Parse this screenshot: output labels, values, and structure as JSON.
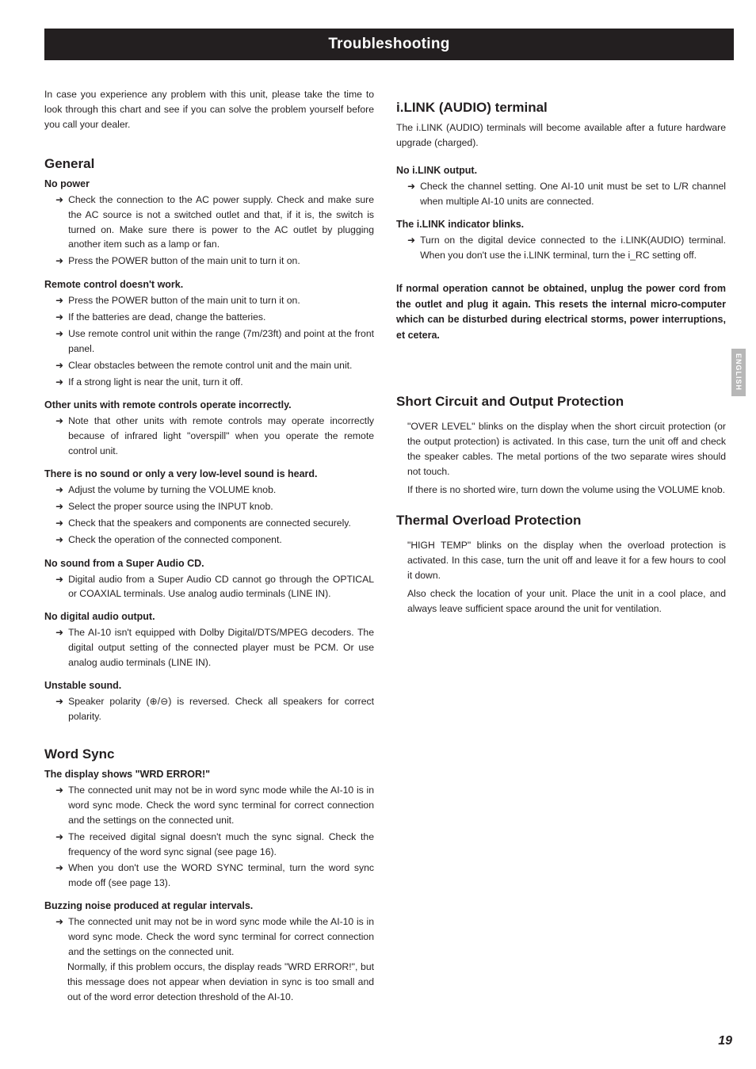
{
  "header": {
    "title": "Troubleshooting"
  },
  "sideTab": "ENGLISH",
  "pageNumber": "19",
  "intro": "In case you experience any problem with this unit, please take the time to look through this chart and see if you can solve the problem yourself before you call your dealer.",
  "sections": {
    "general": {
      "title": "General",
      "items": [
        {
          "sym": "No power",
          "pts": [
            "Check the connection to the AC power supply. Check and make sure the AC source is not a switched outlet and that, if it is, the switch is turned on. Make sure there is power to the AC outlet by plugging another item such as a lamp or fan.",
            "Press the POWER button of the main unit to turn it on."
          ]
        },
        {
          "sym": "Remote control doesn't work.",
          "pts": [
            "Press the POWER button of the main unit to turn it on.",
            "If the batteries are dead, change the batteries.",
            "Use remote control unit within the range (7m/23ft) and point at the front panel.",
            "Clear obstacles between the remote control unit and the main unit.",
            "If a strong light is near the unit, turn it off."
          ]
        },
        {
          "sym": "Other units with remote controls operate incorrectly.",
          "pts": [
            "Note that other units with remote controls may operate incorrectly because of infrared light \"overspill\" when you operate the remote control unit."
          ]
        },
        {
          "sym": "There is no sound or only a very low-level sound is heard.",
          "pts": [
            "Adjust the volume by turning the VOLUME knob.",
            "Select the proper source using the INPUT knob.",
            "Check that the speakers and components are connected securely.",
            "Check the operation of the connected component."
          ]
        },
        {
          "sym": "No sound from a Super Audio CD.",
          "pts": [
            "Digital audio from a Super Audio CD cannot go through the OPTICAL or COAXIAL terminals. Use analog audio terminals (LINE IN)."
          ]
        },
        {
          "sym": "No digital audio output.",
          "pts": [
            "The AI-10 isn't equipped with Dolby Digital/DTS/MPEG decoders. The digital output setting of the connected player must be PCM. Or use analog audio terminals (LINE IN)."
          ]
        },
        {
          "sym": "Unstable sound.",
          "pts": [
            "Speaker polarity (⊕/⊖) is reversed. Check all speakers for correct polarity."
          ]
        }
      ]
    },
    "wordsync": {
      "title": "Word Sync",
      "items": [
        {
          "sym": "The display shows \"WRD ERROR!\"",
          "pts": [
            "The connected unit may not be in word sync mode while the AI-10 is in word sync mode. Check the word sync terminal for correct connection and the settings on the connected unit.",
            "The received digital signal doesn't much the sync signal. Check the frequency of the word sync signal (see page 16).",
            "When you don't use the WORD SYNC terminal, turn the word sync mode off (see page 13)."
          ]
        },
        {
          "sym": "Buzzing noise produced at regular intervals.",
          "pts": [
            "The connected unit may not be in word sync mode while the AI-10 is in word sync mode. Check the word sync terminal for correct connection and the settings on the connected unit."
          ],
          "sub": "Normally, if this problem occurs, the display reads \"WRD ERROR!\", but this message does not appear when deviation in sync is too small and out of the word error detection threshold of the AI-10."
        }
      ]
    },
    "ilink": {
      "title": "i.LINK (AUDIO) terminal",
      "lead": "The i.LINK (AUDIO) terminals will become available after a future hardware upgrade (charged).",
      "items": [
        {
          "sym": "No i.LINK output.",
          "pts": [
            "Check the channel setting. One AI-10 unit must be set to L/R channel when multiple AI-10 units are connected."
          ]
        },
        {
          "sym": "The i.LINK indicator blinks.",
          "pts": [
            "Turn on the digital device connected to the i.LINK(AUDIO) terminal. When you don't use the i.LINK terminal, turn the i_RC setting off."
          ]
        }
      ]
    },
    "notice": "If normal operation cannot be obtained, unplug the power cord from the outlet and plug it again. This resets the internal micro-computer which can be disturbed during electrical storms, power interruptions, et cetera.",
    "short": {
      "title": "Short Circuit and Output Protection",
      "body1": "\"OVER LEVEL\" blinks on the display when the short circuit protection (or the output protection) is activated. In this case, turn the unit off and check the speaker cables. The metal portions of the two separate wires should not touch.",
      "body2": "If there is no shorted wire, turn down the volume using the VOLUME knob."
    },
    "thermal": {
      "title": "Thermal Overload Protection",
      "body1": "\"HIGH TEMP\" blinks on the display when the overload protection is activated. In this case, turn the unit off and leave it for a few hours to cool it down.",
      "body2": "Also check the location of your unit. Place the unit in a cool place, and always leave sufficient space around the unit for ventilation."
    }
  }
}
